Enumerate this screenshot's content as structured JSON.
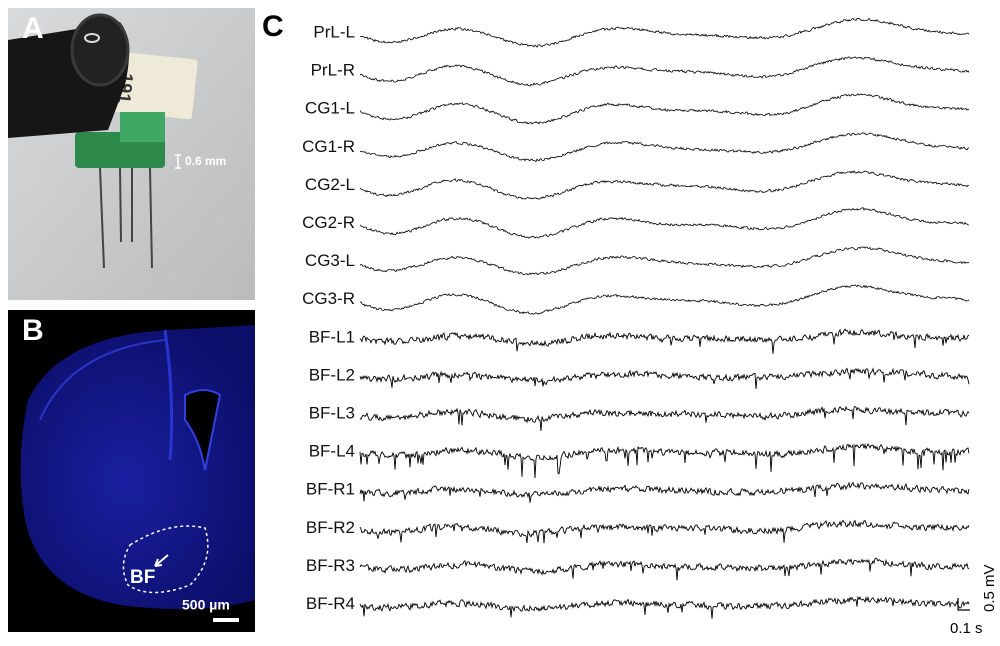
{
  "panels": {
    "A": {
      "label": "A",
      "dimension": "0.6 mm"
    },
    "B": {
      "label": "B",
      "region": "BF",
      "scale_bar": "500 µm"
    },
    "C": {
      "label": "C",
      "channels": [
        "PrL-L",
        "PrL-R",
        "CG1-L",
        "CG1-R",
        "CG2-L",
        "CG2-R",
        "CG3-L",
        "CG3-R",
        "BF-L1",
        "BF-L2",
        "BF-L3",
        "BF-L4",
        "BF-R1",
        "BF-R2",
        "BF-R3",
        "BF-R4"
      ],
      "scale_time": "0.1 s",
      "scale_voltage": "0.5 mV"
    }
  }
}
